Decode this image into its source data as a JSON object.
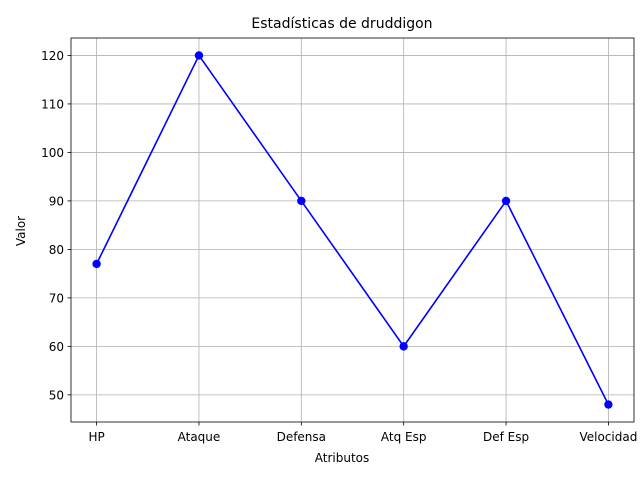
{
  "chart_data": {
    "type": "line",
    "title": "Estadísticas de druddigon",
    "xlabel": "Atributos",
    "ylabel": "Valor",
    "categories": [
      "HP",
      "Ataque",
      "Defensa",
      "Atq Esp",
      "Def Esp",
      "Velocidad"
    ],
    "series": [
      {
        "values": [
          77,
          120,
          90,
          60,
          90,
          48
        ],
        "color": "#0000ff",
        "marker": "circle"
      }
    ],
    "ylim": [
      44.4,
      123.6
    ],
    "yticks": [
      50,
      60,
      70,
      80,
      90,
      100,
      110,
      120
    ],
    "grid": true,
    "legend": false
  }
}
